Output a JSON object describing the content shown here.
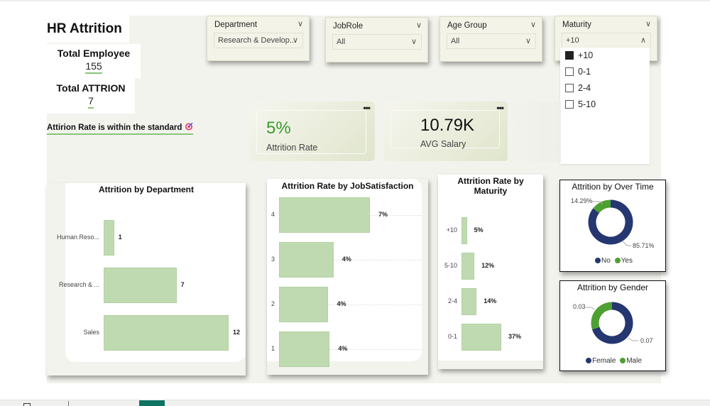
{
  "header": {
    "title": "HR Attrition",
    "total_employee_label": "Total Employee",
    "total_employee_value": "155",
    "total_attrition_label": "Total ATTRION",
    "total_attrition_value": "7",
    "note": "Attirion Rate is within the standard",
    "note_icon": "target-icon"
  },
  "slicers": [
    {
      "title": "Department",
      "value": "Research & Develop..."
    },
    {
      "title": "JobRole",
      "value": "All"
    },
    {
      "title": "Age Group",
      "value": "All"
    },
    {
      "title": "Maturity",
      "value": "+10",
      "expanded": true,
      "options": [
        {
          "label": "+10",
          "checked": true
        },
        {
          "label": "0-1",
          "checked": false
        },
        {
          "label": "2-4",
          "checked": false
        },
        {
          "label": "5-10",
          "checked": false
        }
      ]
    }
  ],
  "cards": {
    "attrition_rate": {
      "value": "5%",
      "label": "Attrition Rate",
      "color": "#3a9a2a"
    },
    "avg_salary": {
      "value": "10.79K",
      "label": "AVG Salary"
    },
    "more_options": "•••"
  },
  "colors": {
    "bar": "#bfdab0",
    "navy": "#253670",
    "green": "#4da032",
    "accent_underline": "#8bc47a",
    "bottom_tab": "#0e7360"
  },
  "chart_data": [
    {
      "type": "bar",
      "orientation": "horizontal",
      "title": "Attrition by Department",
      "categories": [
        "Human Reso...",
        "Research & ...",
        "Sales"
      ],
      "values": [
        1,
        7,
        12
      ],
      "labels": [
        "1",
        "7",
        "12"
      ]
    },
    {
      "type": "bar",
      "orientation": "horizontal",
      "title": "Attrition Rate by JobSatisfaction",
      "categories": [
        "4",
        "3",
        "2",
        "1"
      ],
      "values": [
        7,
        4.2,
        3.8,
        3.9
      ],
      "labels": [
        "7%",
        "4%",
        "4%",
        "4%"
      ],
      "unit": "%"
    },
    {
      "type": "bar",
      "orientation": "horizontal",
      "title": "Attrition Rate by Maturity",
      "categories": [
        "+10",
        "5-10",
        "2-4",
        "0-1"
      ],
      "values": [
        5,
        12,
        14,
        37
      ],
      "labels": [
        "5%",
        "12%",
        "14%",
        "37%"
      ],
      "unit": "%"
    },
    {
      "type": "pie",
      "donut": true,
      "title": "Attrition by Over Time",
      "categories": [
        "No",
        "Yes"
      ],
      "values": [
        85.71,
        14.29
      ],
      "labels": [
        "85.71%",
        "14.29%"
      ],
      "legend": "bottom"
    },
    {
      "type": "pie",
      "donut": true,
      "title": "Attrition by Gender",
      "categories": [
        "Female",
        "Male"
      ],
      "values": [
        0.07,
        0.03
      ],
      "labels": [
        "0.07",
        "0.03"
      ],
      "legend": "bottom"
    }
  ]
}
